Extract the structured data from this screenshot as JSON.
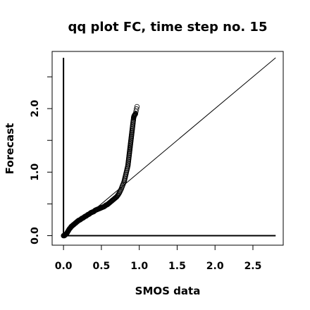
{
  "chart_data": {
    "type": "scatter",
    "title": "qq plot FC, time step no. 15",
    "xlabel": "SMOS data",
    "ylabel": "Forecast",
    "xlim": [
      -0.15,
      2.9
    ],
    "ylim": [
      -0.15,
      2.9
    ],
    "xticks": [
      0.0,
      0.5,
      1.0,
      1.5,
      2.0,
      2.5
    ],
    "xtick_labels": [
      "0.0",
      "0.5",
      "1.0",
      "1.5",
      "2.0",
      "2.5"
    ],
    "yticks": [
      0.0,
      0.5,
      1.0,
      1.5,
      2.0,
      2.5
    ],
    "ytick_labels": [
      "0.0",
      "",
      "1.0",
      "",
      "2.0",
      ""
    ],
    "reference_line": [
      [
        0,
        0
      ],
      [
        2.8,
        2.8
      ]
    ],
    "zero_lines": {
      "horizontal": [
        0,
        2.8
      ],
      "vertical": [
        0,
        2.8
      ]
    },
    "grid": false,
    "marker": "open-circle",
    "points": [
      [
        0.0,
        0.0
      ],
      [
        0.01,
        0.0
      ],
      [
        0.02,
        0.01
      ],
      [
        0.03,
        0.02
      ],
      [
        0.04,
        0.03
      ],
      [
        0.05,
        0.05
      ],
      [
        0.06,
        0.07
      ],
      [
        0.07,
        0.09
      ],
      [
        0.08,
        0.11
      ],
      [
        0.09,
        0.12
      ],
      [
        0.1,
        0.14
      ],
      [
        0.11,
        0.15
      ],
      [
        0.12,
        0.16
      ],
      [
        0.13,
        0.17
      ],
      [
        0.14,
        0.18
      ],
      [
        0.15,
        0.19
      ],
      [
        0.16,
        0.2
      ],
      [
        0.17,
        0.21
      ],
      [
        0.18,
        0.22
      ],
      [
        0.19,
        0.23
      ],
      [
        0.2,
        0.24
      ],
      [
        0.22,
        0.25
      ],
      [
        0.24,
        0.27
      ],
      [
        0.26,
        0.28
      ],
      [
        0.28,
        0.3
      ],
      [
        0.3,
        0.31
      ],
      [
        0.32,
        0.33
      ],
      [
        0.34,
        0.34
      ],
      [
        0.36,
        0.36
      ],
      [
        0.38,
        0.37
      ],
      [
        0.4,
        0.38
      ],
      [
        0.42,
        0.4
      ],
      [
        0.44,
        0.41
      ],
      [
        0.46,
        0.42
      ],
      [
        0.48,
        0.43
      ],
      [
        0.5,
        0.44
      ],
      [
        0.52,
        0.45
      ],
      [
        0.54,
        0.46
      ],
      [
        0.56,
        0.48
      ],
      [
        0.58,
        0.49
      ],
      [
        0.6,
        0.51
      ],
      [
        0.62,
        0.53
      ],
      [
        0.64,
        0.55
      ],
      [
        0.66,
        0.57
      ],
      [
        0.68,
        0.59
      ],
      [
        0.7,
        0.61
      ],
      [
        0.72,
        0.64
      ],
      [
        0.74,
        0.68
      ],
      [
        0.76,
        0.73
      ],
      [
        0.78,
        0.79
      ],
      [
        0.8,
        0.85
      ],
      [
        0.81,
        0.9
      ],
      [
        0.82,
        0.95
      ],
      [
        0.83,
        1.0
      ],
      [
        0.84,
        1.05
      ],
      [
        0.85,
        1.1
      ],
      [
        0.855,
        1.15
      ],
      [
        0.86,
        1.2
      ],
      [
        0.865,
        1.25
      ],
      [
        0.87,
        1.3
      ],
      [
        0.875,
        1.35
      ],
      [
        0.88,
        1.4
      ],
      [
        0.885,
        1.45
      ],
      [
        0.89,
        1.5
      ],
      [
        0.895,
        1.55
      ],
      [
        0.9,
        1.6
      ],
      [
        0.905,
        1.65
      ],
      [
        0.91,
        1.7
      ],
      [
        0.915,
        1.75
      ],
      [
        0.92,
        1.8
      ],
      [
        0.925,
        1.85
      ],
      [
        0.93,
        1.88
      ],
      [
        0.94,
        1.9
      ],
      [
        0.95,
        1.92
      ],
      [
        0.97,
        2.03
      ]
    ]
  }
}
